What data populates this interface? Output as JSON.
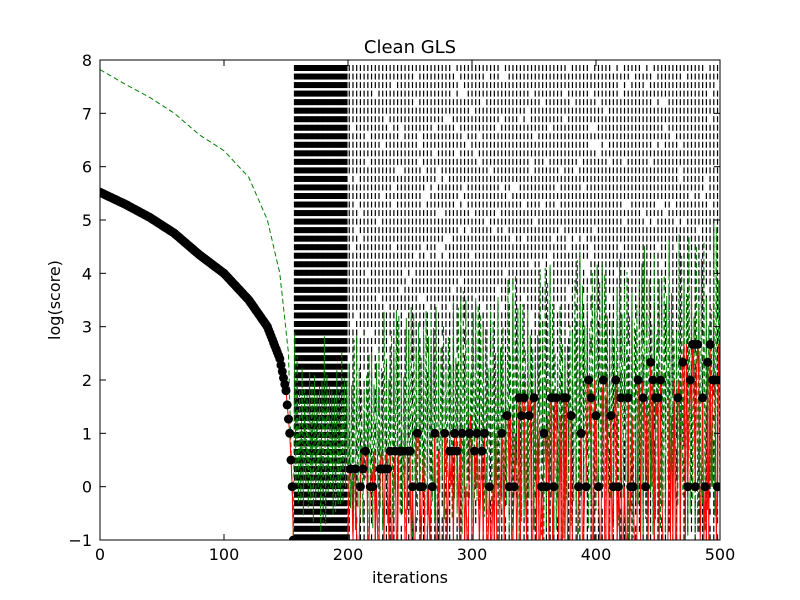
{
  "chart_data": {
    "type": "line",
    "title": "Clean GLS",
    "xlabel": "iterations",
    "ylabel": "log(score)",
    "xlim": [
      0,
      500
    ],
    "ylim": [
      -1,
      8
    ],
    "xticks": [
      "0",
      "100",
      "200",
      "300",
      "400",
      "500"
    ],
    "yticks": [
      "−1",
      "0",
      "1",
      "2",
      "3",
      "4",
      "5",
      "6",
      "7",
      "8"
    ],
    "grid": false,
    "legend": "none",
    "colors": {
      "score_markers": "#000000",
      "score_line": "#ff0000",
      "upper_dashed": "#008000",
      "vertical_ticks": "#000000"
    },
    "series": [
      {
        "style": "black circle markers with red connecting line",
        "description_points": [
          [
            0,
            5.52
          ],
          [
            20,
            5.3
          ],
          [
            40,
            5.05
          ],
          [
            60,
            4.75
          ],
          [
            80,
            4.35
          ],
          [
            100,
            4.0
          ],
          [
            120,
            3.5
          ],
          [
            135,
            3.0
          ],
          [
            145,
            2.4
          ],
          [
            150,
            1.8
          ],
          [
            153,
            1.0
          ],
          [
            155,
            0.0
          ],
          [
            156,
            -1.0
          ],
          [
            200,
            0.5
          ],
          [
            250,
            1.0
          ],
          [
            300,
            1.2
          ],
          [
            350,
            1.8
          ],
          [
            400,
            2.0
          ],
          [
            450,
            2.3
          ],
          [
            500,
            3.0
          ]
        ]
      },
      {
        "style": "green dashed",
        "description_points": [
          [
            0,
            7.82
          ],
          [
            20,
            7.55
          ],
          [
            40,
            7.3
          ],
          [
            60,
            7.0
          ],
          [
            80,
            6.6
          ],
          [
            100,
            6.3
          ],
          [
            120,
            5.8
          ],
          [
            135,
            5.0
          ],
          [
            145,
            4.0
          ],
          [
            152,
            2.5
          ],
          [
            156,
            -1.0
          ],
          [
            200,
            3.0
          ],
          [
            250,
            3.5
          ],
          [
            300,
            3.7
          ],
          [
            350,
            4.2
          ],
          [
            400,
            4.5
          ],
          [
            450,
            4.7
          ],
          [
            500,
            5.3
          ]
        ]
      }
    ]
  }
}
